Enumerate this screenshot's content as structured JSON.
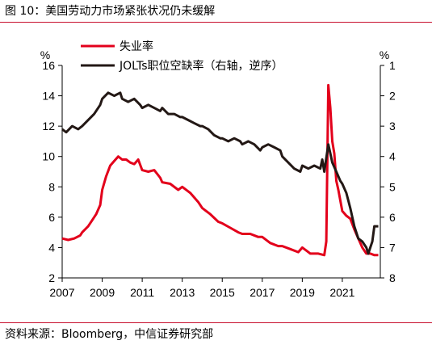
{
  "header": {
    "title": "图 10：美国劳动力市场紧张状况仍未缓解"
  },
  "footer": {
    "source": "资料来源：Bloomberg，中信证券研究部"
  },
  "colors": {
    "unemployment": "#e3001b",
    "jolts": "#231815",
    "rule": "#c8102e"
  },
  "chart_data": {
    "type": "line",
    "left_axis": {
      "unit": "%",
      "range": [
        2,
        16
      ],
      "ticks": [
        2,
        4,
        6,
        8,
        10,
        12,
        14,
        16
      ]
    },
    "right_axis": {
      "unit": "%",
      "range": [
        1,
        8
      ],
      "reversed": true,
      "ticks": [
        1,
        2,
        3,
        4,
        5,
        6,
        7,
        8
      ]
    },
    "x_axis": {
      "range": [
        2007,
        2022.9
      ],
      "ticks": [
        2007,
        2009,
        2011,
        2013,
        2015,
        2017,
        2019,
        2021
      ]
    },
    "grid": false,
    "legend": {
      "placement": "top"
    },
    "series": [
      {
        "name": "失业率",
        "axis": "left",
        "points": [
          [
            2007.0,
            4.6
          ],
          [
            2007.3,
            4.5
          ],
          [
            2007.6,
            4.6
          ],
          [
            2007.9,
            4.8
          ],
          [
            2008.0,
            5.0
          ],
          [
            2008.3,
            5.4
          ],
          [
            2008.5,
            5.8
          ],
          [
            2008.7,
            6.2
          ],
          [
            2008.9,
            6.8
          ],
          [
            2009.0,
            7.8
          ],
          [
            2009.2,
            8.7
          ],
          [
            2009.4,
            9.4
          ],
          [
            2009.6,
            9.7
          ],
          [
            2009.8,
            10.0
          ],
          [
            2010.0,
            9.8
          ],
          [
            2010.2,
            9.8
          ],
          [
            2010.4,
            9.6
          ],
          [
            2010.6,
            9.5
          ],
          [
            2010.8,
            9.8
          ],
          [
            2011.0,
            9.1
          ],
          [
            2011.3,
            9.0
          ],
          [
            2011.6,
            9.1
          ],
          [
            2011.9,
            8.6
          ],
          [
            2012.0,
            8.3
          ],
          [
            2012.4,
            8.2
          ],
          [
            2012.8,
            7.8
          ],
          [
            2013.0,
            8.0
          ],
          [
            2013.4,
            7.6
          ],
          [
            2013.8,
            7.0
          ],
          [
            2014.0,
            6.6
          ],
          [
            2014.4,
            6.2
          ],
          [
            2014.8,
            5.7
          ],
          [
            2015.0,
            5.6
          ],
          [
            2015.4,
            5.3
          ],
          [
            2015.8,
            5.0
          ],
          [
            2016.0,
            4.9
          ],
          [
            2016.4,
            4.9
          ],
          [
            2016.8,
            4.7
          ],
          [
            2017.0,
            4.7
          ],
          [
            2017.4,
            4.3
          ],
          [
            2017.8,
            4.1
          ],
          [
            2018.0,
            4.1
          ],
          [
            2018.4,
            3.9
          ],
          [
            2018.8,
            3.7
          ],
          [
            2019.0,
            4.0
          ],
          [
            2019.4,
            3.6
          ],
          [
            2019.8,
            3.6
          ],
          [
            2020.1,
            3.5
          ],
          [
            2020.2,
            4.4
          ],
          [
            2020.3,
            14.7
          ],
          [
            2020.4,
            13.2
          ],
          [
            2020.5,
            11.0
          ],
          [
            2020.6,
            10.2
          ],
          [
            2020.7,
            8.4
          ],
          [
            2020.8,
            7.8
          ],
          [
            2021.0,
            6.4
          ],
          [
            2021.2,
            6.1
          ],
          [
            2021.4,
            5.9
          ],
          [
            2021.6,
            5.2
          ],
          [
            2021.8,
            4.6
          ],
          [
            2022.0,
            4.0
          ],
          [
            2022.2,
            3.6
          ],
          [
            2022.4,
            3.6
          ],
          [
            2022.6,
            3.5
          ],
          [
            2022.8,
            3.5
          ]
        ]
      },
      {
        "name": "JOLTs职位空缺率（右轴，逆序）",
        "axis": "right",
        "points": [
          [
            2007.0,
            3.1
          ],
          [
            2007.2,
            3.2
          ],
          [
            2007.5,
            3.0
          ],
          [
            2007.8,
            3.1
          ],
          [
            2008.0,
            3.0
          ],
          [
            2008.3,
            2.8
          ],
          [
            2008.6,
            2.6
          ],
          [
            2008.9,
            2.3
          ],
          [
            2009.0,
            2.1
          ],
          [
            2009.3,
            1.9
          ],
          [
            2009.6,
            2.0
          ],
          [
            2009.9,
            1.9
          ],
          [
            2010.0,
            2.1
          ],
          [
            2010.3,
            2.2
          ],
          [
            2010.6,
            2.1
          ],
          [
            2010.9,
            2.3
          ],
          [
            2011.0,
            2.4
          ],
          [
            2011.3,
            2.3
          ],
          [
            2011.6,
            2.4
          ],
          [
            2011.9,
            2.5
          ],
          [
            2012.0,
            2.4
          ],
          [
            2012.3,
            2.6
          ],
          [
            2012.6,
            2.6
          ],
          [
            2012.9,
            2.7
          ],
          [
            2013.0,
            2.7
          ],
          [
            2013.3,
            2.8
          ],
          [
            2013.6,
            2.9
          ],
          [
            2013.9,
            3.0
          ],
          [
            2014.0,
            3.0
          ],
          [
            2014.3,
            3.1
          ],
          [
            2014.6,
            3.3
          ],
          [
            2014.9,
            3.4
          ],
          [
            2015.0,
            3.4
          ],
          [
            2015.3,
            3.5
          ],
          [
            2015.6,
            3.4
          ],
          [
            2015.9,
            3.5
          ],
          [
            2016.0,
            3.6
          ],
          [
            2016.3,
            3.5
          ],
          [
            2016.6,
            3.6
          ],
          [
            2016.9,
            3.8
          ],
          [
            2017.0,
            3.7
          ],
          [
            2017.3,
            3.6
          ],
          [
            2017.6,
            3.7
          ],
          [
            2017.9,
            3.8
          ],
          [
            2018.0,
            4.0
          ],
          [
            2018.3,
            4.2
          ],
          [
            2018.6,
            4.4
          ],
          [
            2018.9,
            4.5
          ],
          [
            2019.0,
            4.3
          ],
          [
            2019.3,
            4.4
          ],
          [
            2019.6,
            4.3
          ],
          [
            2019.9,
            4.4
          ],
          [
            2020.0,
            4.1
          ],
          [
            2020.1,
            4.5
          ],
          [
            2020.3,
            3.6
          ],
          [
            2020.4,
            3.9
          ],
          [
            2020.5,
            4.2
          ],
          [
            2020.7,
            4.5
          ],
          [
            2020.9,
            4.8
          ],
          [
            2021.0,
            4.9
          ],
          [
            2021.2,
            5.2
          ],
          [
            2021.4,
            5.7
          ],
          [
            2021.6,
            6.3
          ],
          [
            2021.8,
            6.7
          ],
          [
            2022.0,
            6.8
          ],
          [
            2022.2,
            7.0
          ],
          [
            2022.3,
            7.2
          ],
          [
            2022.4,
            7.0
          ],
          [
            2022.5,
            6.8
          ],
          [
            2022.6,
            6.3
          ],
          [
            2022.8,
            6.3
          ]
        ]
      }
    ]
  }
}
